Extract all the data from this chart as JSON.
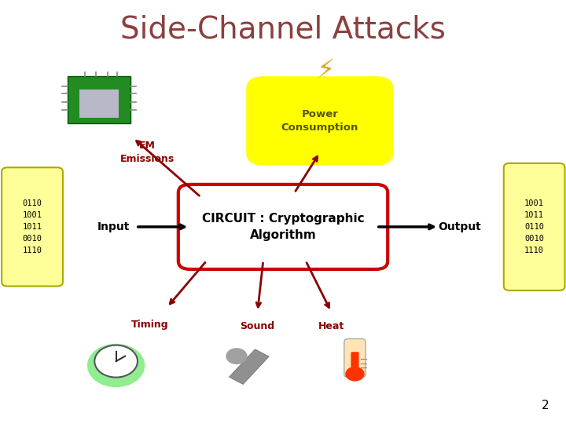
{
  "title": "Side-Channel Attacks",
  "title_color": "#8B4040",
  "title_fontsize": 28,
  "bg_color": "#FFFFFF",
  "circuit_label": "CIRCUIT : Cryptographic\nAlgorithm",
  "circuit_box_color": "#FFFFFF",
  "circuit_box_edgecolor": "#CC0000",
  "power_label": "Power\nConsumption",
  "power_bg": "#FFFF00",
  "em_label": "EM\nEmissions",
  "em_color": "#8B0000",
  "timing_label": "Timing",
  "timing_color": "#8B0000",
  "sound_label": "Sound",
  "sound_color": "#8B0000",
  "heat_label": "Heat",
  "heat_color": "#8B0000",
  "input_label": "Input",
  "output_label": "Output",
  "input_bits": "0110\n1001\n1011\n0010\n1110",
  "output_bits": "1001\n1011\n0110\n0010\n1110",
  "bits_bg": "#FFFF99",
  "bits_edge": "#AAAA00",
  "arrow_color": "#8B0000",
  "io_arrow_color": "#000000",
  "page_number": "2"
}
